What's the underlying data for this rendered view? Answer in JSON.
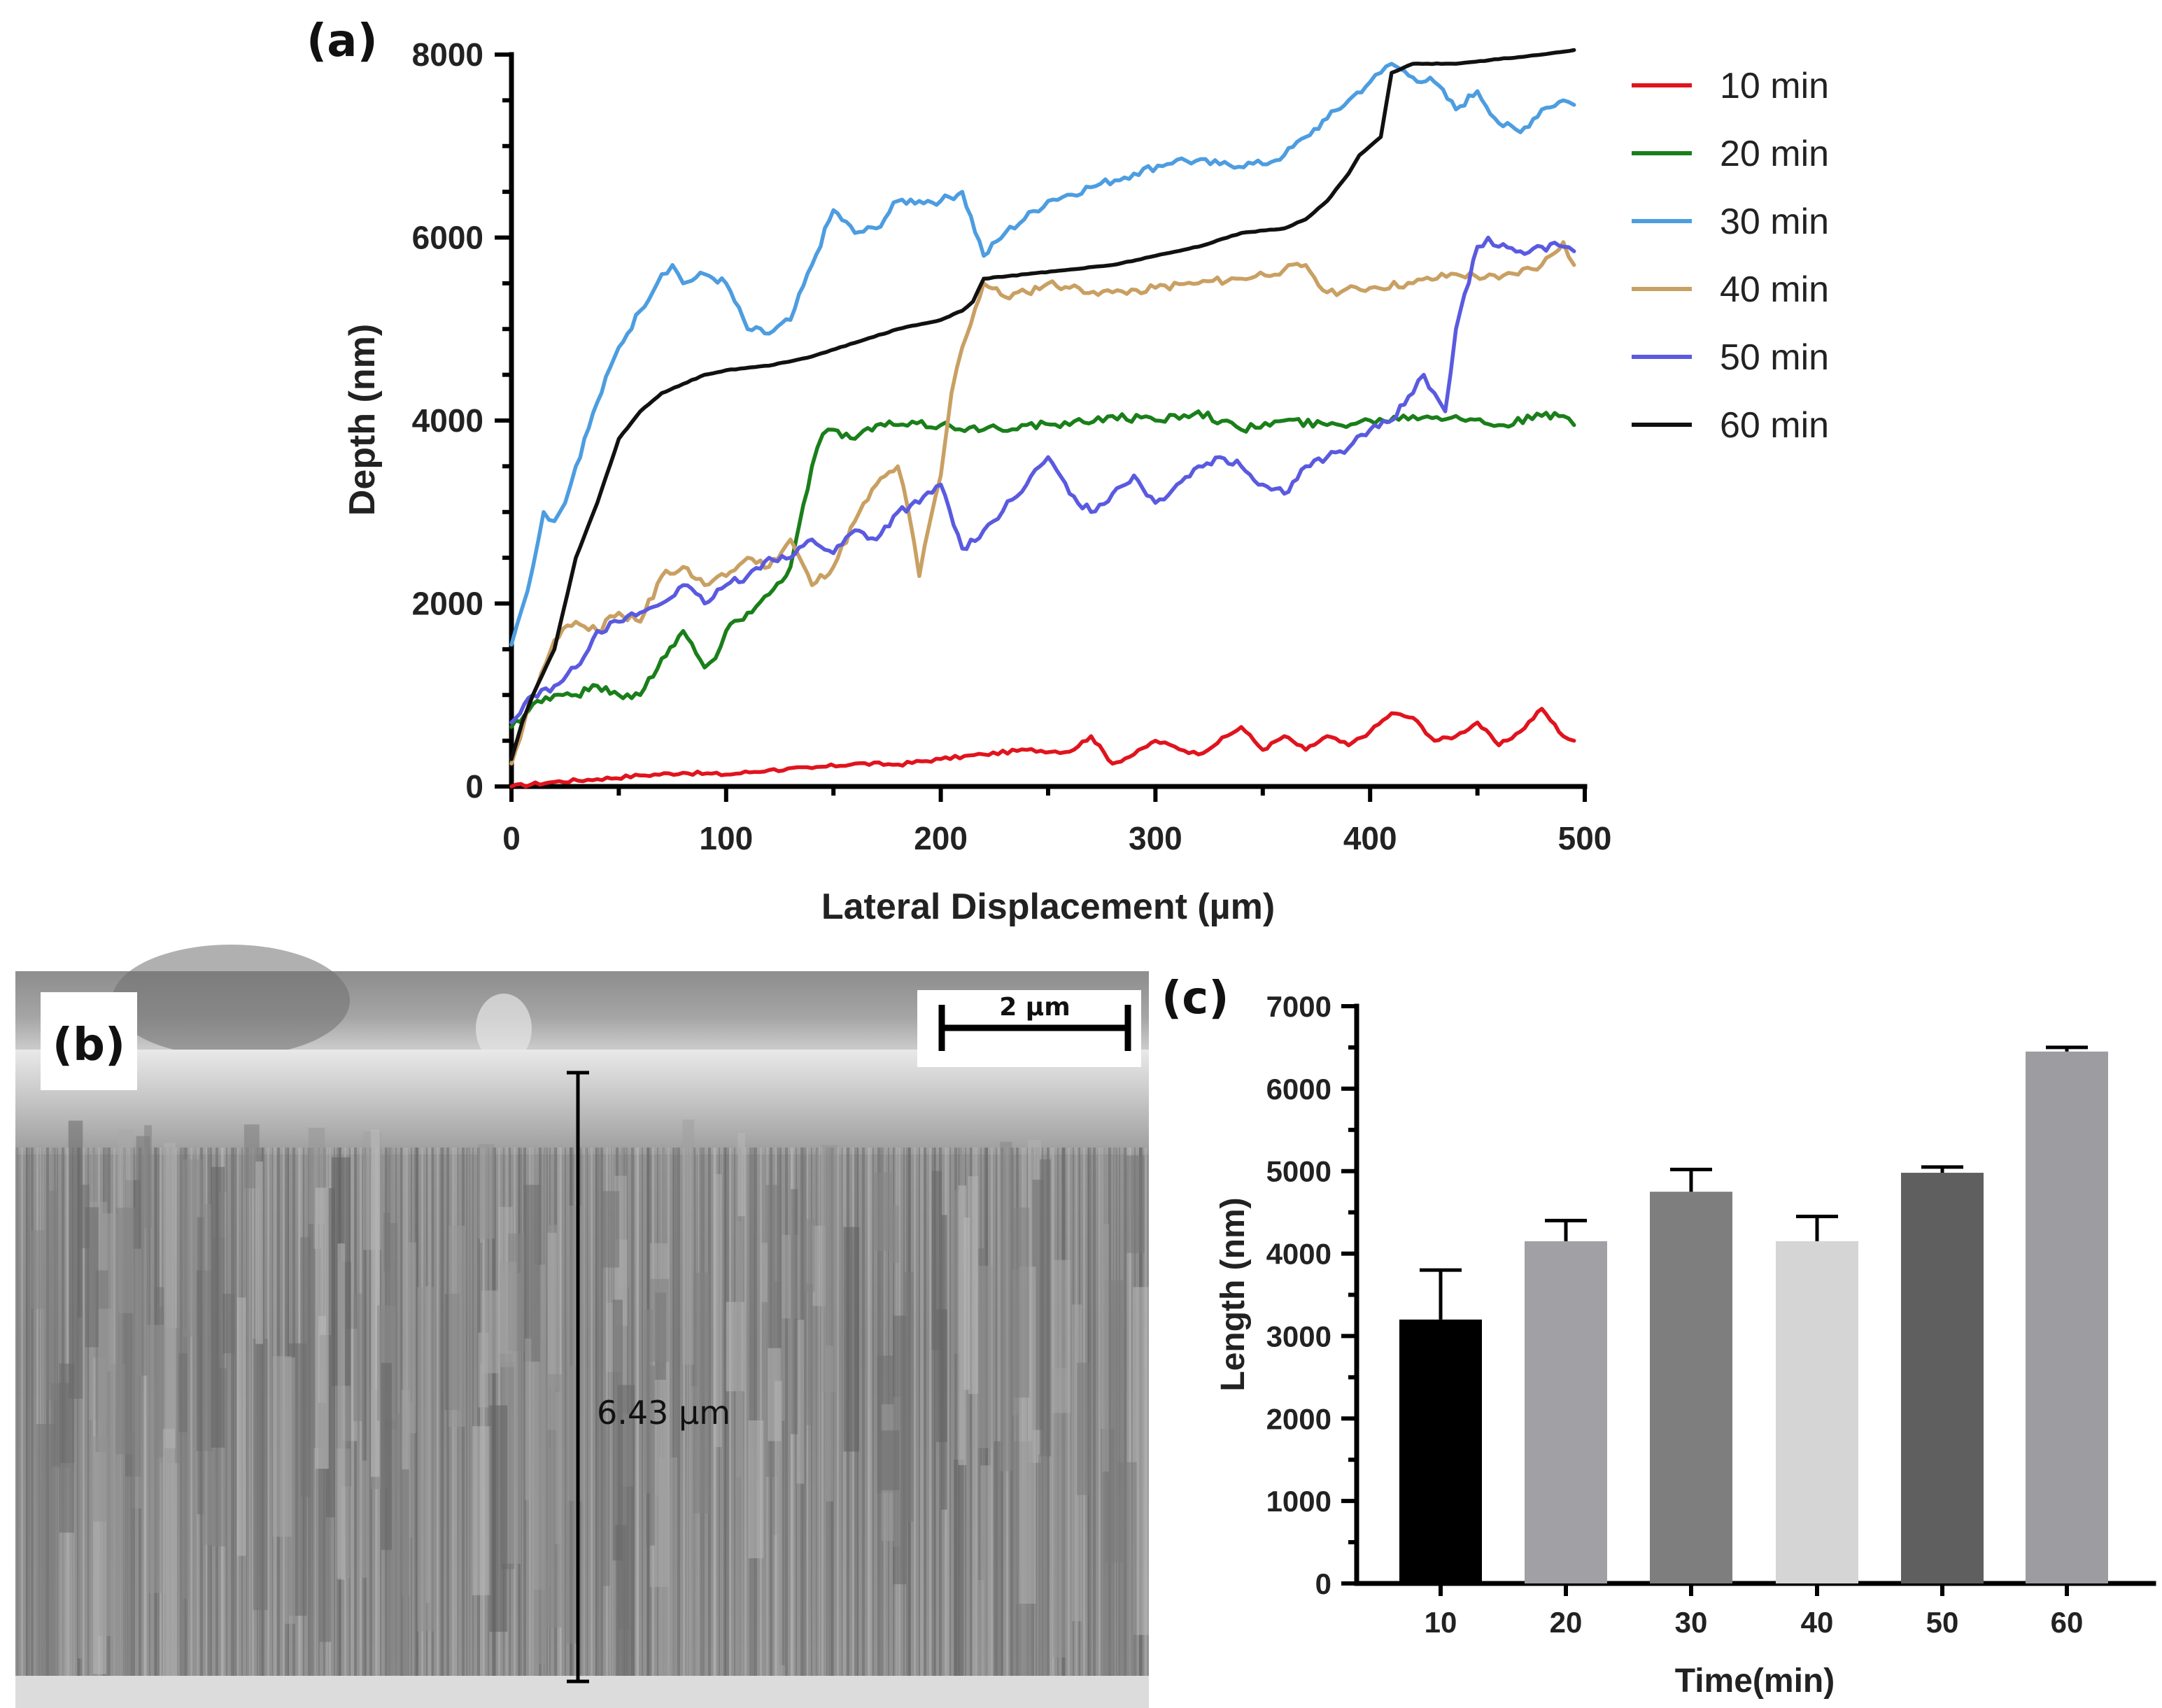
{
  "figure": {
    "panel_labels": {
      "a": "(a)",
      "b": "(b)",
      "c": "(c)"
    }
  },
  "chart_data": [
    {
      "type": "line",
      "panel": "(a)",
      "title": "",
      "xlabel": "Lateral Displacement (µm)",
      "ylabel": "Depth (nm)",
      "xlim": [
        0,
        500
      ],
      "ylim": [
        0,
        8000
      ],
      "xticks": [
        0,
        100,
        200,
        300,
        400,
        500
      ],
      "yticks": [
        0,
        2000,
        4000,
        6000,
        8000
      ],
      "grid": false,
      "legend_position": "right",
      "series": [
        {
          "name": "10 min",
          "color": "#e0141e",
          "x": [
            0,
            20,
            40,
            60,
            80,
            100,
            120,
            140,
            160,
            180,
            200,
            220,
            240,
            260,
            270,
            280,
            290,
            300,
            320,
            340,
            350,
            360,
            370,
            380,
            390,
            400,
            410,
            420,
            430,
            440,
            450,
            460,
            470,
            480,
            490,
            495
          ],
          "y": [
            0,
            50,
            80,
            120,
            150,
            130,
            180,
            200,
            250,
            240,
            300,
            350,
            400,
            380,
            550,
            250,
            350,
            500,
            350,
            650,
            400,
            550,
            400,
            550,
            450,
            600,
            800,
            750,
            500,
            550,
            700,
            450,
            600,
            850,
            550,
            500
          ]
        },
        {
          "name": "20 min",
          "color": "#1a7f1a",
          "x": [
            0,
            10,
            20,
            30,
            40,
            50,
            60,
            70,
            80,
            90,
            95,
            100,
            110,
            120,
            130,
            140,
            145,
            150,
            160,
            170,
            180,
            200,
            220,
            240,
            260,
            280,
            300,
            320,
            340,
            360,
            380,
            400,
            420,
            440,
            460,
            480,
            490,
            495
          ],
          "y": [
            650,
            900,
            1000,
            1000,
            1100,
            1000,
            1000,
            1400,
            1700,
            1300,
            1400,
            1700,
            1900,
            2100,
            2400,
            3500,
            3850,
            3900,
            3800,
            3950,
            3950,
            3950,
            3900,
            3950,
            3950,
            4050,
            4000,
            4100,
            3900,
            4000,
            3950,
            4000,
            4050,
            4050,
            3950,
            4050,
            4050,
            3950
          ]
        },
        {
          "name": "30 min",
          "color": "#4d9de0",
          "x": [
            0,
            5,
            10,
            15,
            20,
            25,
            30,
            40,
            50,
            60,
            70,
            75,
            80,
            90,
            100,
            110,
            120,
            130,
            140,
            150,
            160,
            170,
            180,
            190,
            200,
            210,
            220,
            230,
            250,
            270,
            290,
            310,
            330,
            350,
            360,
            370,
            380,
            390,
            400,
            405,
            410,
            420,
            430,
            440,
            450,
            460,
            470,
            480,
            490,
            495
          ],
          "y": [
            1550,
            1950,
            2400,
            3000,
            2900,
            3100,
            3500,
            4200,
            4800,
            5200,
            5600,
            5700,
            5500,
            5600,
            5500,
            5000,
            4950,
            5100,
            5700,
            6300,
            6050,
            6100,
            6400,
            6400,
            6400,
            6500,
            5800,
            6050,
            6400,
            6550,
            6700,
            6850,
            6800,
            6800,
            6900,
            7100,
            7300,
            7500,
            7700,
            7800,
            7900,
            7750,
            7700,
            7400,
            7600,
            7250,
            7150,
            7400,
            7500,
            7450
          ]
        },
        {
          "name": "40 min",
          "color": "#c9a063",
          "x": [
            0,
            10,
            20,
            30,
            40,
            50,
            60,
            70,
            80,
            90,
            100,
            110,
            120,
            130,
            140,
            150,
            160,
            170,
            180,
            185,
            190,
            195,
            200,
            205,
            210,
            220,
            230,
            240,
            250,
            260,
            280,
            300,
            320,
            340,
            360,
            370,
            380,
            400,
            420,
            440,
            460,
            480,
            490,
            495
          ],
          "y": [
            250,
            1000,
            1600,
            1800,
            1700,
            1900,
            1800,
            2300,
            2400,
            2200,
            2300,
            2500,
            2400,
            2700,
            2200,
            2400,
            2900,
            3300,
            3500,
            3000,
            2300,
            2900,
            3400,
            4300,
            4800,
            5500,
            5350,
            5400,
            5500,
            5450,
            5400,
            5450,
            5500,
            5550,
            5650,
            5700,
            5400,
            5450,
            5500,
            5600,
            5550,
            5700,
            5950,
            5700
          ]
        },
        {
          "name": "50 min",
          "color": "#5a5ae0",
          "x": [
            0,
            10,
            20,
            30,
            40,
            50,
            60,
            70,
            80,
            90,
            100,
            110,
            120,
            130,
            140,
            150,
            160,
            170,
            180,
            190,
            200,
            210,
            220,
            240,
            250,
            260,
            270,
            280,
            290,
            300,
            310,
            320,
            330,
            340,
            350,
            360,
            370,
            380,
            390,
            400,
            410,
            420,
            425,
            430,
            435,
            440,
            450,
            455,
            460,
            470,
            480,
            490,
            495
          ],
          "y": [
            700,
            1000,
            1100,
            1300,
            1700,
            1800,
            1900,
            2000,
            2200,
            2000,
            2200,
            2300,
            2500,
            2500,
            2700,
            2550,
            2800,
            2700,
            3000,
            3100,
            3300,
            2600,
            2800,
            3300,
            3600,
            3200,
            3000,
            3200,
            3400,
            3100,
            3300,
            3500,
            3600,
            3500,
            3300,
            3200,
            3500,
            3600,
            3700,
            3900,
            4000,
            4300,
            4500,
            4300,
            4100,
            5000,
            5900,
            6000,
            5900,
            5850,
            5900,
            5900,
            5850
          ]
        },
        {
          "name": "60 min",
          "color": "#111111",
          "x": [
            0,
            5,
            10,
            20,
            30,
            40,
            50,
            60,
            70,
            80,
            90,
            100,
            120,
            140,
            160,
            180,
            200,
            210,
            215,
            220,
            240,
            260,
            280,
            300,
            320,
            340,
            360,
            370,
            380,
            390,
            395,
            400,
            405,
            410,
            415,
            420,
            440,
            460,
            480,
            495
          ],
          "y": [
            300,
            700,
            1000,
            1500,
            2500,
            3100,
            3800,
            4100,
            4300,
            4400,
            4500,
            4550,
            4600,
            4700,
            4850,
            5000,
            5100,
            5200,
            5300,
            5550,
            5600,
            5650,
            5700,
            5800,
            5900,
            6050,
            6100,
            6200,
            6400,
            6700,
            6900,
            7000,
            7100,
            7800,
            7850,
            7900,
            7900,
            7950,
            8000,
            8050
          ]
        }
      ]
    },
    {
      "type": "bar",
      "panel": "(c)",
      "title": "",
      "xlabel": "Time(min)",
      "ylabel": "Length (nm)",
      "ylim": [
        0,
        7000
      ],
      "yticks": [
        0,
        1000,
        2000,
        3000,
        4000,
        5000,
        6000,
        7000
      ],
      "categories": [
        "10",
        "20",
        "30",
        "40",
        "50",
        "60"
      ],
      "values": [
        3200,
        4150,
        4750,
        4150,
        4980,
        6450
      ],
      "errors": [
        600,
        250,
        270,
        300,
        70,
        50
      ],
      "colors": [
        "#000000",
        "#a0a0a5",
        "#7e7e7e",
        "#d5d5d5",
        "#5f5f5f",
        "#9d9da1"
      ],
      "grid": false
    }
  ],
  "sem_image": {
    "panel": "(b)",
    "scale_bar_label": "2 µm",
    "measurement_label": "6.43 µm"
  }
}
